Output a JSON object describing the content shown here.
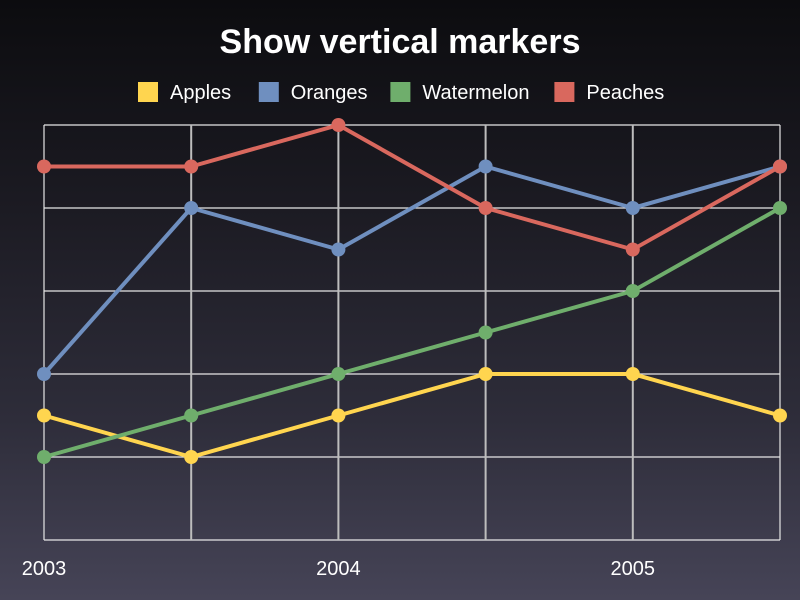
{
  "chart_data": {
    "type": "line",
    "title": "Show vertical markers",
    "xlabel": "",
    "ylabel": "",
    "x": [
      "2003",
      "2003.5",
      "2004",
      "2004.5",
      "2005",
      "2005.5"
    ],
    "x_tick_labels": [
      "2003",
      "2004",
      "2005"
    ],
    "vertical_markers": [
      "2003.5",
      "2004",
      "2004.5",
      "2005"
    ],
    "ylim": [
      0,
      10
    ],
    "grid": true,
    "legend_position": "top",
    "series": [
      {
        "name": "Apples",
        "color": "#ffd54f",
        "values": [
          3,
          2,
          3,
          4,
          4,
          3
        ]
      },
      {
        "name": "Oranges",
        "color": "#6f8fbf",
        "values": [
          4,
          8,
          7,
          9,
          8,
          9
        ]
      },
      {
        "name": "Watermelon",
        "color": "#6fae6c",
        "values": [
          2,
          3,
          4,
          5,
          6,
          8
        ]
      },
      {
        "name": "Peaches",
        "color": "#d9685e",
        "values": [
          9,
          9,
          10,
          8,
          7,
          9
        ]
      }
    ]
  }
}
